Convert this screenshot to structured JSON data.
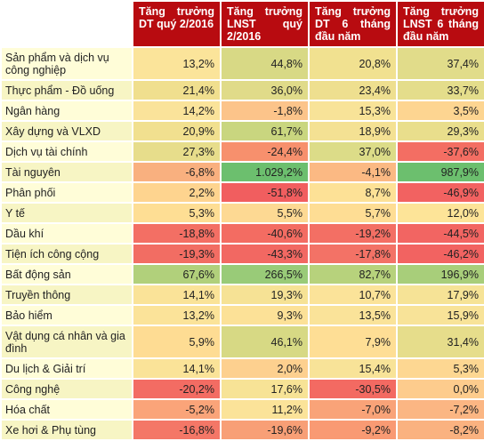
{
  "headers": [
    "",
    "Tăng trưởng DT quý 2/2016",
    "Tăng trưởng LNST quý 2/2016",
    "Tăng trưởng DT 6 tháng đầu năm",
    "Tăng trưởng LNST 6 tháng đầu năm"
  ],
  "rows": [
    {
      "sector": "Sản phẩm và dịch vụ công nghiệp",
      "values": [
        "13,2%",
        "44,8%",
        "20,8%",
        "37,4%"
      ],
      "colors": [
        "#fbe49a",
        "#d8d985",
        "#f1e190",
        "#e1dc8a"
      ]
    },
    {
      "sector": "Thực phẩm - Đồ uống",
      "values": [
        "21,4%",
        "36,0%",
        "23,4%",
        "33,7%"
      ],
      "colors": [
        "#f0df8e",
        "#e0db89",
        "#eedf8f",
        "#e4dd8b"
      ]
    },
    {
      "sector": "Ngân hàng",
      "values": [
        "14,2%",
        "-1,8%",
        "15,3%",
        "3,5%"
      ],
      "colors": [
        "#fae39a",
        "#fcc48a",
        "#f8e398",
        "#fdd591"
      ]
    },
    {
      "sector": "Xây dựng và VLXD",
      "values": [
        "20,9%",
        "61,7%",
        "18,9%",
        "29,3%"
      ],
      "colors": [
        "#f1e08f",
        "#c9d67f",
        "#f4e193",
        "#e9de8c"
      ]
    },
    {
      "sector": "Dịch vụ tài chính",
      "values": [
        "27,3%",
        "-24,4%",
        "37,0%",
        "-37,6%"
      ],
      "colors": [
        "#e7dd8b",
        "#f7906d",
        "#dcdc88",
        "#f36e63"
      ]
    },
    {
      "sector": "Tài nguyên",
      "values": [
        "-6,8%",
        "1.029,2%",
        "-4,1%",
        "987,9%"
      ],
      "colors": [
        "#f9b07f",
        "#6cbf6e",
        "#fbb983",
        "#6cbf6e"
      ]
    },
    {
      "sector": "Phân phối",
      "values": [
        "2,2%",
        "-51,8%",
        "8,7%",
        "-46,9%"
      ],
      "colors": [
        "#fed48f",
        "#f15e5f",
        "#fde196",
        "#f26261"
      ]
    },
    {
      "sector": "Y tế",
      "values": [
        "5,3%",
        "5,5%",
        "5,7%",
        "12,0%"
      ],
      "colors": [
        "#fede94",
        "#fdd993",
        "#fedd94",
        "#fde498"
      ]
    },
    {
      "sector": "Dầu khí",
      "values": [
        "-18,8%",
        "-40,6%",
        "-19,2%",
        "-44,5%"
      ],
      "colors": [
        "#f36f64",
        "#f36c62",
        "#f36f64",
        "#f26562"
      ]
    },
    {
      "sector": "Tiện ích công cộng",
      "values": [
        "-19,3%",
        "-43,3%",
        "-17,8%",
        "-46,2%"
      ],
      "colors": [
        "#f26d63",
        "#f26862",
        "#f37266",
        "#f26361"
      ]
    },
    {
      "sector": "Bất động sản",
      "values": [
        "67,6%",
        "266,5%",
        "82,7%",
        "196,9%"
      ],
      "colors": [
        "#b1d07b",
        "#99cb78",
        "#b7d27c",
        "#a8ce7a"
      ]
    },
    {
      "sector": "Truyền thông",
      "values": [
        "14,1%",
        "19,3%",
        "10,7%",
        "17,9%"
      ],
      "colors": [
        "#fae398",
        "#f6e295",
        "#fbe399",
        "#f6e396"
      ]
    },
    {
      "sector": "Bảo hiểm",
      "values": [
        "13,2%",
        "9,3%",
        "13,5%",
        "15,9%"
      ],
      "colors": [
        "#fbe399",
        "#fce197",
        "#fae399",
        "#f8e398"
      ]
    },
    {
      "sector": "Vật dụng cá nhân và gia đình",
      "values": [
        "5,9%",
        "46,1%",
        "7,9%",
        "31,4%"
      ],
      "colors": [
        "#fedc93",
        "#d7d984",
        "#fede95",
        "#e6dd8b"
      ]
    },
    {
      "sector": "Du lịch & Giải trí",
      "values": [
        "14,1%",
        "2,0%",
        "15,4%",
        "5,3%"
      ],
      "colors": [
        "#fae398",
        "#fdd08f",
        "#f8e398",
        "#fdd792"
      ]
    },
    {
      "sector": "Công nghệ",
      "values": [
        "-20,2%",
        "17,6%",
        "-30,5%",
        "0,0%"
      ],
      "colors": [
        "#f36c63",
        "#f7e396",
        "#f36a62",
        "#fdcc8d"
      ]
    },
    {
      "sector": "Hóa chất",
      "values": [
        "-5,2%",
        "11,2%",
        "-7,0%",
        "-7,2%"
      ],
      "colors": [
        "#faa479",
        "#fbe399",
        "#f9a378",
        "#fbb683"
      ]
    },
    {
      "sector": "Xe hơi & Phụ tùng",
      "values": [
        "-16,8%",
        "-19,6%",
        "-9,2%",
        "-8,2%"
      ],
      "colors": [
        "#f47767",
        "#f89f76",
        "#f99a73",
        "#fab280"
      ]
    }
  ]
}
